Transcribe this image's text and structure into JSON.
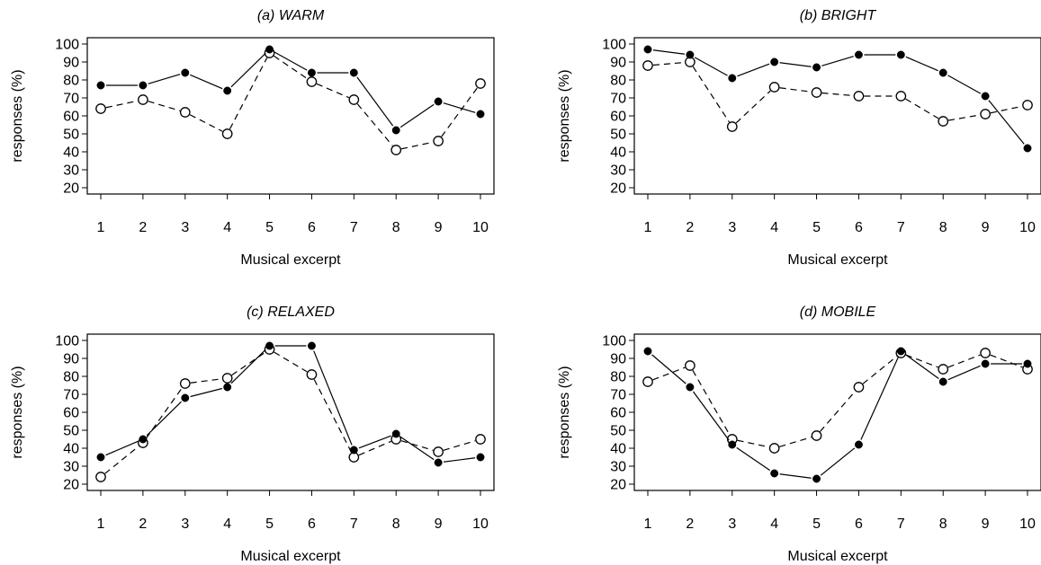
{
  "chart_data": [
    {
      "type": "line",
      "title": "(a) WARM",
      "xlabel": "Musical excerpt",
      "ylabel": "responses (%)",
      "x": [
        1,
        2,
        3,
        4,
        5,
        6,
        7,
        8,
        9,
        10
      ],
      "xticks": [
        "1",
        "2",
        "3",
        "4",
        "5",
        "6",
        "7",
        "8",
        "9",
        "10"
      ],
      "yticks": [
        "20",
        "30",
        "40",
        "50",
        "60",
        "70",
        "80",
        "90",
        "100"
      ],
      "ylim": [
        20,
        100
      ],
      "grid": false,
      "series": [
        {
          "style": "solid-filled-circles",
          "values": [
            77,
            77,
            84,
            74,
            97,
            84,
            84,
            52,
            68,
            61
          ]
        },
        {
          "style": "dashed-open-circles",
          "values": [
            64,
            69,
            62,
            50,
            95,
            79,
            69,
            41,
            46,
            78
          ]
        }
      ]
    },
    {
      "type": "line",
      "title": "(b) BRIGHT",
      "xlabel": "Musical excerpt",
      "ylabel": "responses (%)",
      "x": [
        1,
        2,
        3,
        4,
        5,
        6,
        7,
        8,
        9,
        10
      ],
      "xticks": [
        "1",
        "2",
        "3",
        "4",
        "5",
        "6",
        "7",
        "8",
        "9",
        "10"
      ],
      "yticks": [
        "20",
        "30",
        "40",
        "50",
        "60",
        "70",
        "80",
        "90",
        "100"
      ],
      "ylim": [
        20,
        100
      ],
      "grid": false,
      "series": [
        {
          "style": "solid-filled-circles",
          "values": [
            97,
            94,
            81,
            90,
            87,
            94,
            94,
            84,
            71,
            42
          ]
        },
        {
          "style": "dashed-open-circles",
          "values": [
            88,
            90,
            54,
            76,
            73,
            71,
            71,
            57,
            61,
            66
          ]
        }
      ]
    },
    {
      "type": "line",
      "title": "(c) RELAXED",
      "xlabel": "Musical excerpt",
      "ylabel": "responses (%)",
      "x": [
        1,
        2,
        3,
        4,
        5,
        6,
        7,
        8,
        9,
        10
      ],
      "xticks": [
        "1",
        "2",
        "3",
        "4",
        "5",
        "6",
        "7",
        "8",
        "9",
        "10"
      ],
      "yticks": [
        "20",
        "30",
        "40",
        "50",
        "60",
        "70",
        "80",
        "90",
        "100"
      ],
      "ylim": [
        20,
        100
      ],
      "grid": false,
      "series": [
        {
          "style": "solid-filled-circles",
          "values": [
            35,
            45,
            68,
            74,
            97,
            97,
            39,
            48,
            32,
            35
          ]
        },
        {
          "style": "dashed-open-circles",
          "values": [
            24,
            43,
            76,
            79,
            95,
            81,
            35,
            45,
            38,
            45
          ]
        }
      ]
    },
    {
      "type": "line",
      "title": "(d) MOBILE",
      "xlabel": "Musical excerpt",
      "ylabel": "responses (%)",
      "x": [
        1,
        2,
        3,
        4,
        5,
        6,
        7,
        8,
        9,
        10
      ],
      "xticks": [
        "1",
        "2",
        "3",
        "4",
        "5",
        "6",
        "7",
        "8",
        "9",
        "10"
      ],
      "yticks": [
        "20",
        "30",
        "40",
        "50",
        "60",
        "70",
        "80",
        "90",
        "100"
      ],
      "ylim": [
        20,
        100
      ],
      "grid": false,
      "series": [
        {
          "style": "solid-filled-circles",
          "values": [
            94,
            74,
            42,
            26,
            23,
            42,
            94,
            77,
            87,
            87
          ]
        },
        {
          "style": "dashed-open-circles",
          "values": [
            77,
            86,
            45,
            40,
            47,
            74,
            93,
            84,
            93,
            84
          ]
        }
      ]
    }
  ]
}
